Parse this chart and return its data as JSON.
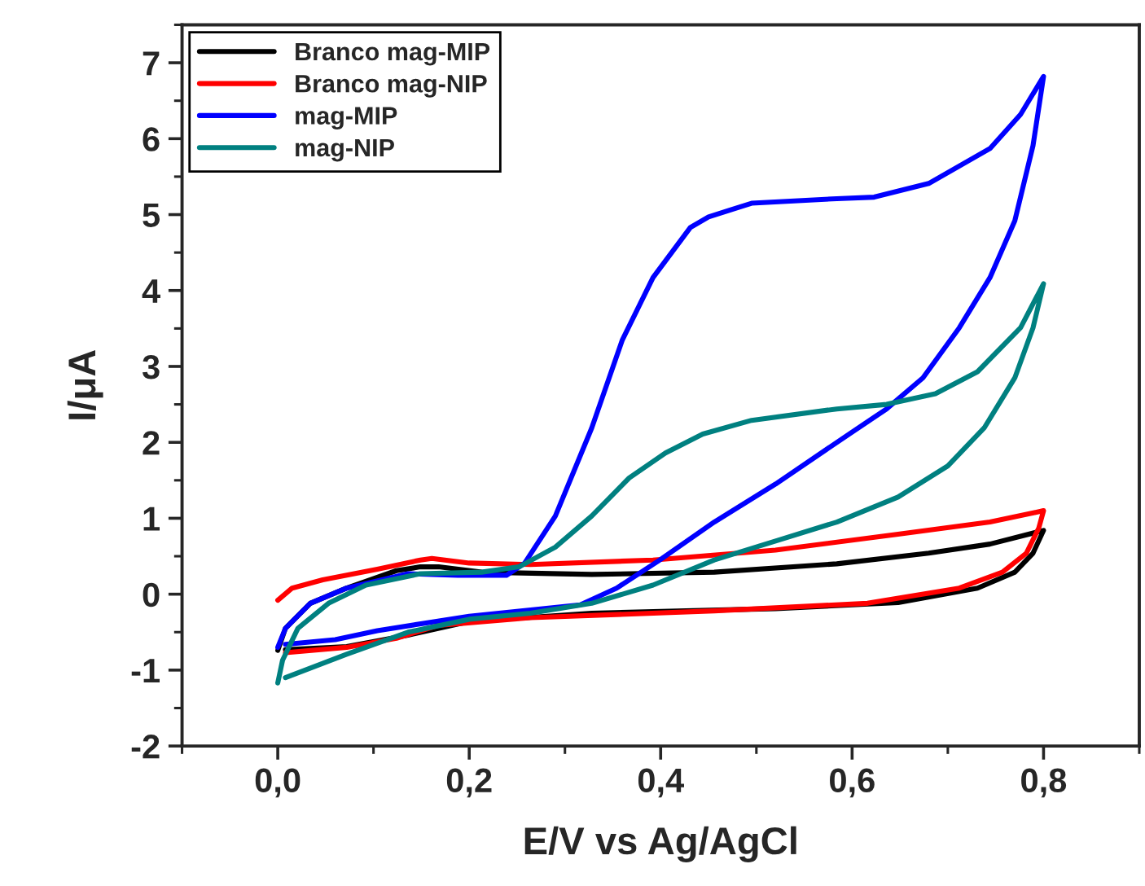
{
  "chart_data": {
    "type": "line",
    "xlabel": "E/V vs Ag/AgCl",
    "ylabel": "I/μA",
    "xlim": [
      -0.1,
      0.9
    ],
    "ylim": [
      -2,
      7.5
    ],
    "xticks": [
      {
        "value": 0,
        "label": "0,0"
      },
      {
        "value": 0.2,
        "label": "0,2"
      },
      {
        "value": 0.4,
        "label": "0,4"
      },
      {
        "value": 0.6,
        "label": "0,6"
      },
      {
        "value": 0.8,
        "label": "0,8"
      }
    ],
    "yticks": [
      {
        "value": -2,
        "label": "-2"
      },
      {
        "value": -1,
        "label": "-1"
      },
      0,
      1,
      2,
      3,
      4,
      5,
      6,
      7
    ],
    "grid": false,
    "legend": "top left",
    "marker": "none",
    "line_style": "solid",
    "series": [
      {
        "name": "Branco mag-MIP",
        "color": "#000000",
        "x": [
          0,
          0.008,
          0.034,
          0.072,
          0.124,
          0.149,
          0.168,
          0.213,
          0.328,
          0.456,
          0.584,
          0.68,
          0.744,
          0.8,
          0.789,
          0.77,
          0.731,
          0.648,
          0.52,
          0.328,
          0.2,
          0.136,
          0.072,
          0.008
        ],
        "values": [
          -0.74,
          -0.45,
          -0.12,
          0.08,
          0.31,
          0.36,
          0.36,
          0.29,
          0.26,
          0.29,
          0.4,
          0.54,
          0.66,
          0.84,
          0.54,
          0.29,
          0.08,
          -0.11,
          -0.19,
          -0.25,
          -0.36,
          -0.54,
          -0.69,
          -0.73
        ]
      },
      {
        "name": "Branco mag-NIP",
        "color": "#ff0000",
        "x": [
          0,
          0.015,
          0.047,
          0.104,
          0.149,
          0.161,
          0.2,
          0.264,
          0.392,
          0.52,
          0.648,
          0.744,
          0.8,
          0.795,
          0.782,
          0.757,
          0.712,
          0.616,
          0.456,
          0.264,
          0.168,
          0.124,
          0.072,
          0.008
        ],
        "values": [
          -0.08,
          0.08,
          0.19,
          0.33,
          0.45,
          0.47,
          0.41,
          0.39,
          0.45,
          0.58,
          0.79,
          0.95,
          1.1,
          0.87,
          0.54,
          0.29,
          0.08,
          -0.12,
          -0.22,
          -0.31,
          -0.41,
          -0.58,
          -0.7,
          -0.77
        ]
      },
      {
        "name": "mag-MIP",
        "color": "#0000ff",
        "x": [
          0,
          0.008,
          0.034,
          0.072,
          0.136,
          0.188,
          0.239,
          0.258,
          0.29,
          0.328,
          0.36,
          0.392,
          0.431,
          0.45,
          0.495,
          0.584,
          0.623,
          0.68,
          0.744,
          0.776,
          0.8,
          0.789,
          0.77,
          0.744,
          0.712,
          0.674,
          0.636,
          0.597,
          0.52,
          0.456,
          0.399,
          0.354,
          0.316,
          0.2,
          0.104,
          0.06,
          0.008
        ],
        "values": [
          -0.7,
          -0.45,
          -0.12,
          0.08,
          0.27,
          0.25,
          0.25,
          0.41,
          1.03,
          2.19,
          3.35,
          4.17,
          4.83,
          4.97,
          5.15,
          5.21,
          5.23,
          5.41,
          5.87,
          6.32,
          6.82,
          5.91,
          4.92,
          4.17,
          3.51,
          2.85,
          2.44,
          2.11,
          1.45,
          0.95,
          0.45,
          0.08,
          -0.14,
          -0.29,
          -0.48,
          -0.6,
          -0.66
        ]
      },
      {
        "name": "mag-NIP",
        "color": "#008080",
        "x": [
          0,
          0.005,
          0.021,
          0.053,
          0.092,
          0.149,
          0.213,
          0.252,
          0.29,
          0.328,
          0.367,
          0.405,
          0.444,
          0.495,
          0.584,
          0.636,
          0.687,
          0.731,
          0.776,
          0.8,
          0.789,
          0.77,
          0.738,
          0.7,
          0.648,
          0.584,
          0.52,
          0.456,
          0.392,
          0.328,
          0.264,
          0.2,
          0.136,
          0.072,
          0.008
        ],
        "values": [
          -1.17,
          -0.87,
          -0.45,
          -0.12,
          0.12,
          0.27,
          0.29,
          0.36,
          0.62,
          1.03,
          1.53,
          1.86,
          2.11,
          2.29,
          2.44,
          2.5,
          2.64,
          2.93,
          3.51,
          4.09,
          3.51,
          2.85,
          2.19,
          1.69,
          1.28,
          0.95,
          0.7,
          0.45,
          0.12,
          -0.12,
          -0.25,
          -0.33,
          -0.5,
          -0.79,
          -1.1
        ]
      }
    ]
  }
}
